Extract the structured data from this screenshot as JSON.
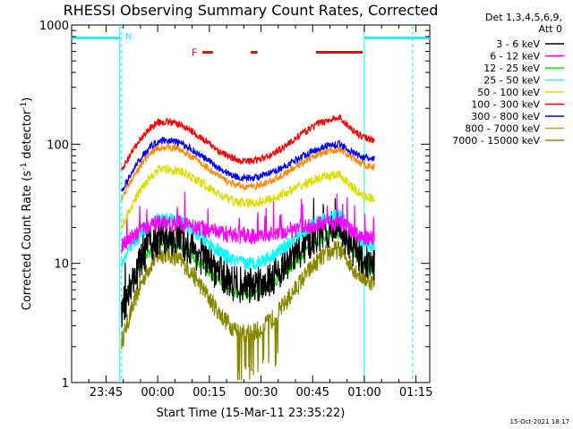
{
  "chart_data": {
    "type": "line",
    "title": "RHESSI Observing Summary Count Rates, Corrected",
    "xlabel": "Start Time (15-Mar-11 23:35:22)",
    "ylabel": "Corrected Count Rate (s",
    "ylabel_sup1": "-1",
    "ylabel_mid": " detector",
    "ylabel_sup2": "-1",
    "ylabel_end": ")",
    "y_scale": "log",
    "ylim": [
      1,
      1000
    ],
    "xlim_minutes_from_2335": [
      0,
      104
    ],
    "x_ticks": [
      {
        "minute": 10,
        "label": "23:45"
      },
      {
        "minute": 25,
        "label": "00:00"
      },
      {
        "minute": 40,
        "label": "00:15"
      },
      {
        "minute": 55,
        "label": "00:30"
      },
      {
        "minute": 70,
        "label": "00:45"
      },
      {
        "minute": 85,
        "label": "01:00"
      },
      {
        "minute": 100,
        "label": "01:15"
      }
    ],
    "y_ticks": [
      {
        "value": 1,
        "label": "1"
      },
      {
        "value": 10,
        "label": "10"
      },
      {
        "value": 100,
        "label": "100"
      },
      {
        "value": 1000,
        "label": "1000"
      }
    ],
    "legend_header": [
      "Det 1,3,4,5,6,9,",
      "Att 0"
    ],
    "legend_position": "top-right outside",
    "data_start_minute": 14.5,
    "data_end_minute": 88,
    "series": [
      {
        "name": "3 - 6 keV",
        "color": "#000000",
        "peak1": 17,
        "valley": 6.5,
        "peak2": 20,
        "start": 4,
        "end": 10,
        "noise": 0.16
      },
      {
        "name": "6 - 12 keV",
        "color": "#ff00ff",
        "peak1": 22,
        "valley": 17,
        "peak2": 22,
        "start": 14,
        "end": 16,
        "noise": 0.07
      },
      {
        "name": "12 - 25 keV",
        "color": "#00ee00",
        "peak1": 15,
        "valley": 5.5,
        "peak2": 18,
        "start": 4.5,
        "end": 9,
        "noise": 0.05
      },
      {
        "name": "25 - 50 keV",
        "color": "#00ffff",
        "peak1": 24,
        "valley": 10,
        "peak2": 25,
        "start": 10,
        "end": 14,
        "noise": 0.06
      },
      {
        "name": "50 - 100 keV",
        "color": "#dddd00",
        "peak1": 62,
        "valley": 32,
        "peak2": 55,
        "start": 20,
        "end": 35,
        "noise": 0.04
      },
      {
        "name": "100 - 300 keV",
        "color": "#ff0000",
        "peak1": 155,
        "valley": 72,
        "peak2": 165,
        "start": 60,
        "end": 110,
        "noise": 0.03
      },
      {
        "name": "300 - 800 keV",
        "color": "#0000ff",
        "peak1": 108,
        "valley": 52,
        "peak2": 100,
        "start": 40,
        "end": 75,
        "noise": 0.03
      },
      {
        "name": "800 - 7000 keV",
        "color": "#ff8800",
        "peak1": 95,
        "valley": 44,
        "peak2": 90,
        "start": 35,
        "end": 65,
        "noise": 0.03
      },
      {
        "name": "7000 - 15000 keV",
        "color": "#888800",
        "peak1": 12,
        "valley": 2.6,
        "peak2": 13,
        "start": 2.2,
        "end": 7,
        "noise": 0.08
      }
    ],
    "night_bars": [
      {
        "start": 0,
        "end": 14,
        "value": 780,
        "color": "#00ffff"
      },
      {
        "start": 85,
        "end": 104,
        "value": 780,
        "color": "#00ffff"
      }
    ],
    "night_boundaries": [
      14,
      85
    ],
    "dashed_markers": [
      14.5,
      99
    ],
    "saa_label": "N",
    "flare_label": "F",
    "flare_bars": [
      {
        "start": 38,
        "end": 41
      },
      {
        "start": 52,
        "end": 54
      },
      {
        "start": 71,
        "end": 84.5
      }
    ],
    "flare_value": 590
  },
  "footer": {
    "timestamp": "15-Oct-2021 18:17"
  }
}
